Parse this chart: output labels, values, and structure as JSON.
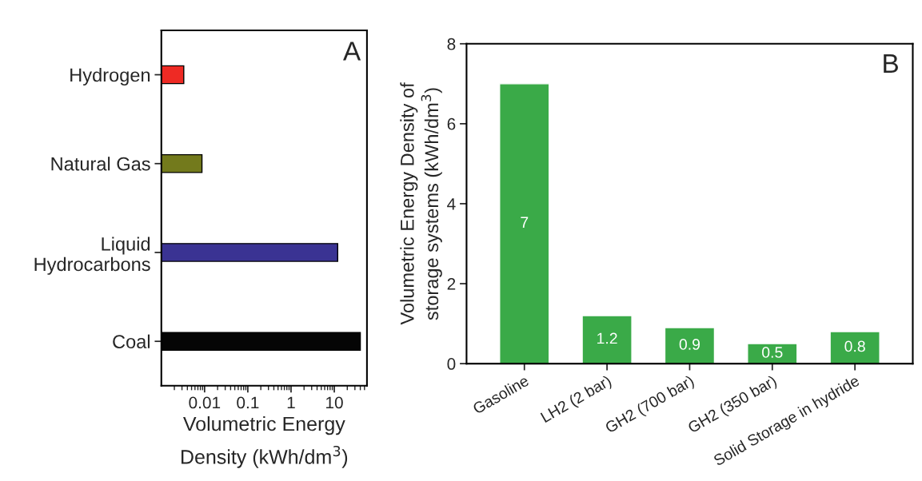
{
  "chart_data": [
    {
      "type": "bar",
      "orientation": "horizontal",
      "categories": [
        "Hydrogen",
        "Natural Gas",
        "Liquid\nHydrocarbons",
        "Coal"
      ],
      "values": [
        0.0033,
        0.0087,
        12,
        40
      ],
      "colors": [
        "#ee2a24",
        "#737a1c",
        "#3a3393",
        "#050505"
      ],
      "log": "x",
      "xlim": [
        0.001,
        57
      ],
      "xticks": [
        0.01,
        0.1,
        1,
        10
      ],
      "xlabel": "Volumetric Energy\nDensity (kWh/dm$^{3}$)",
      "annotations": [
        "A"
      ]
    },
    {
      "type": "bar",
      "categories": [
        "Gasoline",
        "LH2 (2 bar)",
        "GH2 (700 bar)",
        "GH2 (350 bar)",
        "Solid Storage in hydride"
      ],
      "values": [
        7,
        1.2,
        0.9,
        0.5,
        0.8
      ],
      "color": "#3aaa48",
      "data_labels": true,
      "ylim": [
        0,
        8
      ],
      "yticks": [
        0,
        2,
        4,
        6,
        8
      ],
      "ylabel": "Volumetric Energy Density of\nstorage systems (kWh/dm$^{3}$)",
      "annotations": [
        "B"
      ]
    }
  ]
}
